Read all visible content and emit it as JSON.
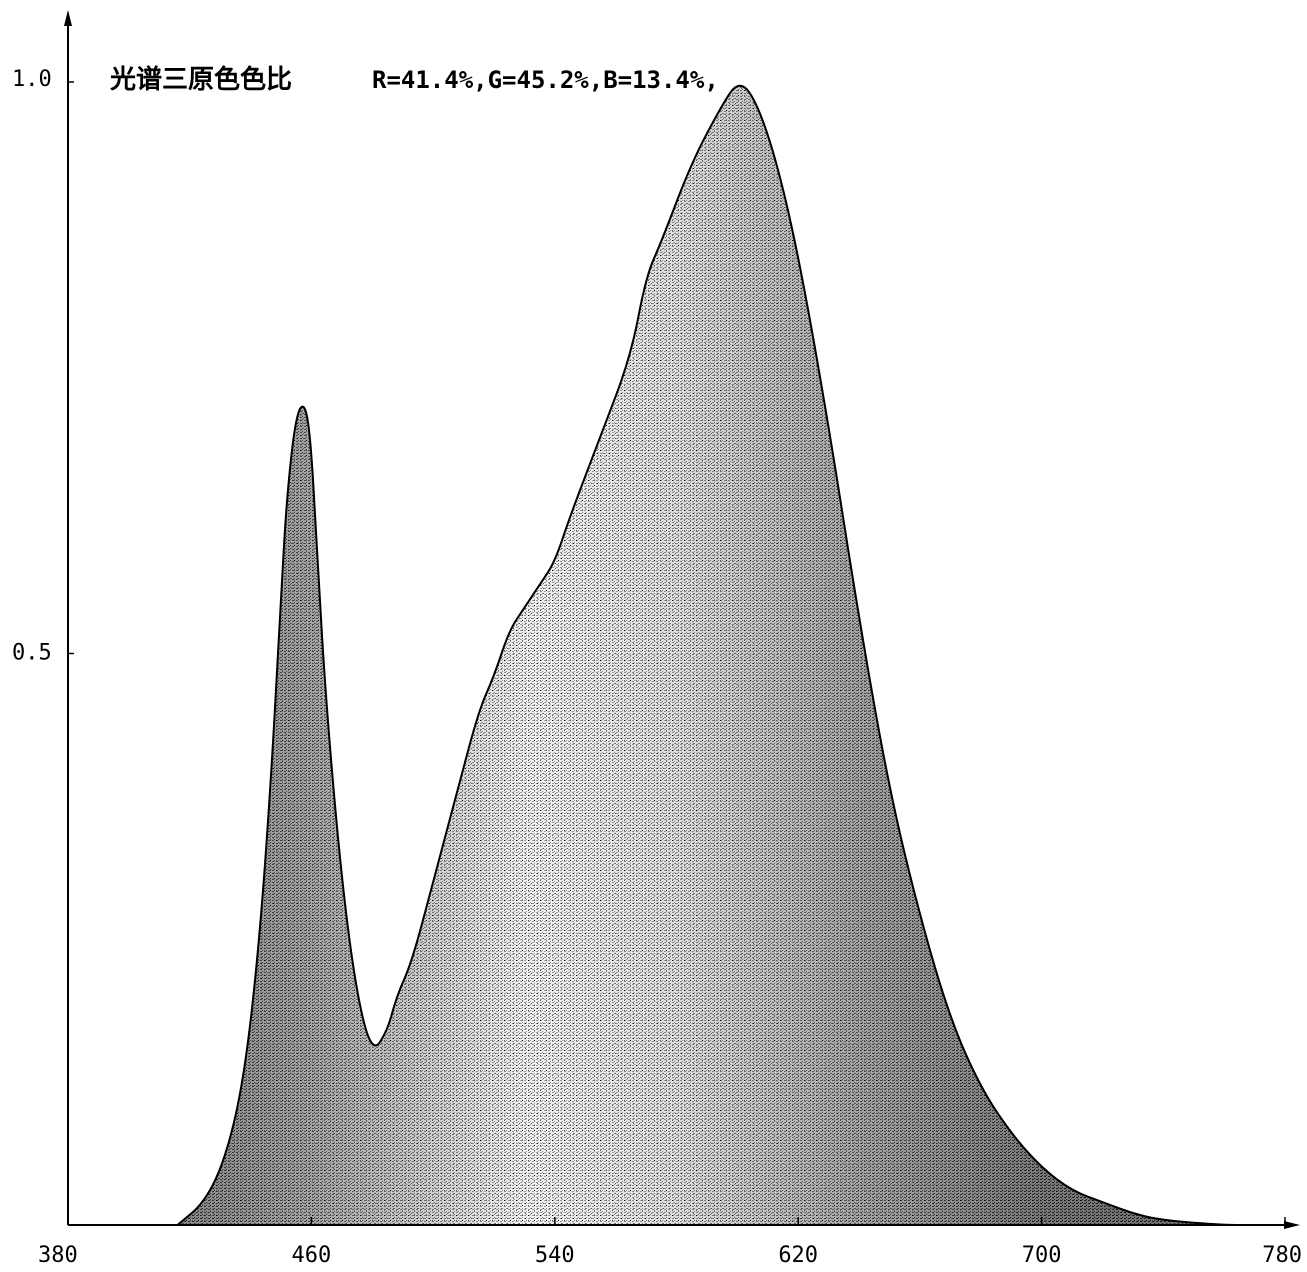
{
  "chart_data": {
    "type": "area",
    "title": "光谱三原色色比",
    "subtitle": "R=41.4%,G=45.2%,B=13.4%,",
    "xlabel": "",
    "ylabel": "",
    "xlim": [
      380,
      780
    ],
    "ylim": [
      0,
      1.0
    ],
    "x_ticks": [
      380,
      460,
      540,
      620,
      700,
      780
    ],
    "x_tick_labels": [
      "380",
      "460",
      "540",
      "620",
      "700",
      "780"
    ],
    "y_ticks": [
      0.5,
      1.0
    ],
    "y_tick_labels": [
      "0.5",
      "1.0"
    ],
    "grid": false,
    "legend": "none",
    "fill_style": "stippled gradient (dark at edges, light in middle)",
    "series": [
      {
        "x": [
          416,
          425,
          432,
          438,
          443,
          447,
          450,
          452,
          455,
          458,
          460,
          462,
          465,
          470,
          475,
          480,
          485,
          488,
          493,
          500,
          508,
          515,
          520,
          525,
          530,
          535,
          540,
          545,
          555,
          565,
          570,
          575,
          585,
          595,
          600,
          605,
          612,
          620,
          630,
          640,
          650,
          660,
          670,
          680,
          690,
          700,
          710,
          720,
          730,
          740,
          760,
          770
        ],
        "values": [
          0.0,
          0.02,
          0.06,
          0.13,
          0.25,
          0.4,
          0.55,
          0.64,
          0.71,
          0.72,
          0.68,
          0.58,
          0.45,
          0.3,
          0.2,
          0.15,
          0.17,
          0.2,
          0.23,
          0.3,
          0.38,
          0.45,
          0.48,
          0.52,
          0.54,
          0.56,
          0.58,
          0.62,
          0.69,
          0.76,
          0.83,
          0.86,
          0.93,
          0.98,
          1.0,
          0.99,
          0.94,
          0.85,
          0.7,
          0.53,
          0.38,
          0.27,
          0.18,
          0.12,
          0.08,
          0.05,
          0.03,
          0.02,
          0.01,
          0.004,
          0.0,
          0.0
        ]
      }
    ]
  }
}
